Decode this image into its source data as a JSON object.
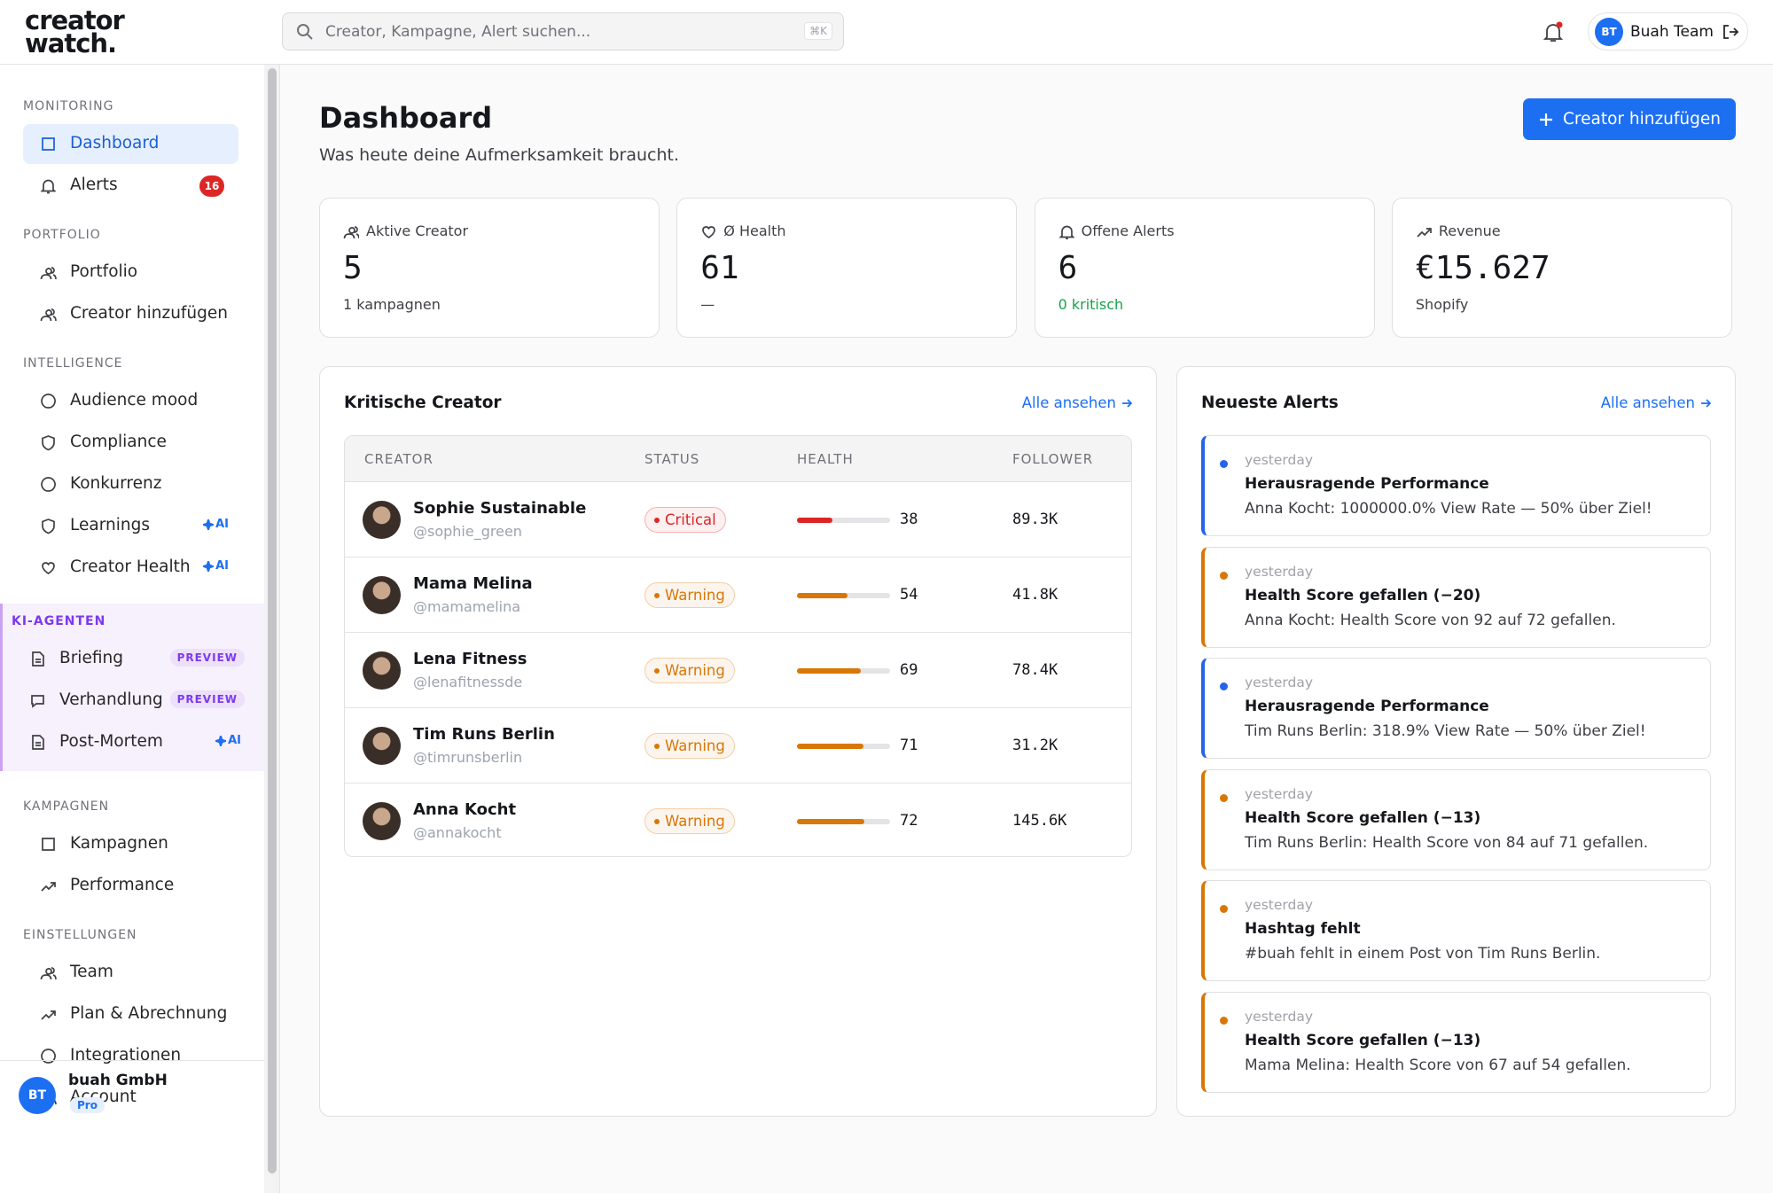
{
  "logo": {
    "line1": "creator",
    "line2": "watch."
  },
  "search": {
    "placeholder": "Creator, Kampagne, Alert suchen...",
    "shortcut": "⌘K"
  },
  "user": {
    "initials": "BT",
    "name": "Buah Team"
  },
  "sidebar": {
    "sections": [
      {
        "title": "MONITORING",
        "items": [
          {
            "label": "Dashboard",
            "active": true
          },
          {
            "label": "Alerts",
            "badge": 16
          }
        ]
      },
      {
        "title": "PORTFOLIO",
        "items": [
          {
            "label": "Portfolio"
          },
          {
            "label": "Creator hinzufügen"
          }
        ]
      },
      {
        "title": "INTELLIGENCE",
        "items": [
          {
            "label": "Audience mood"
          },
          {
            "label": "Compliance"
          },
          {
            "label": "Konkurrenz"
          },
          {
            "label": "Learnings",
            "tag": "AI"
          },
          {
            "label": "Creator Health",
            "tag": "AI"
          }
        ]
      },
      {
        "title": "KI-AGENTEN",
        "highlight": true,
        "items": [
          {
            "label": "Briefing",
            "pill": "PREVIEW"
          },
          {
            "label": "Verhandlung",
            "pill": "PREVIEW"
          },
          {
            "label": "Post-Mortem",
            "tag": "AI"
          }
        ]
      },
      {
        "title": "KAMPAGNEN",
        "items": [
          {
            "label": "Kampagnen"
          },
          {
            "label": "Performance"
          }
        ]
      },
      {
        "title": "EINSTELLUNGEN",
        "items": [
          {
            "label": "Team"
          },
          {
            "label": "Plan & Abrechnung"
          },
          {
            "label": "Integrationen"
          },
          {
            "label": "Account"
          }
        ]
      }
    ],
    "footer": {
      "initials": "BT",
      "name": "buah GmbH",
      "plan": "Pro"
    }
  },
  "page": {
    "title": "Dashboard",
    "subtitle": "Was heute deine Aufmerksamkeit braucht.",
    "cta": "Creator hinzufügen"
  },
  "stats": [
    {
      "label": "Aktive Creator",
      "value": 5,
      "note": "1 kampagnen"
    },
    {
      "label": "Ø Health",
      "value": 61,
      "note": "—"
    },
    {
      "label": "Offene Alerts",
      "value": 6,
      "note": "0 kritisch",
      "note_color": "#16a34a"
    },
    {
      "label": "Revenue",
      "value": "€15.627",
      "note": "Shopify"
    }
  ],
  "critical": {
    "title": "Kritische Creator",
    "link": "Alle ansehen",
    "columns": [
      "CREATOR",
      "STATUS",
      "HEALTH",
      "FOLLOWER"
    ],
    "rows": [
      {
        "name": "Sophie Sustainable",
        "handle": "@sophie_green",
        "status": "Critical",
        "color": "#dc2626",
        "health": 38,
        "follower": "89.3K"
      },
      {
        "name": "Mama Melina",
        "handle": "@mamamelina",
        "status": "Warning",
        "color": "#d97706",
        "health": 54,
        "follower": "41.8K"
      },
      {
        "name": "Lena Fitness",
        "handle": "@lenafitnessde",
        "status": "Warning",
        "color": "#d97706",
        "health": 69,
        "follower": "78.4K"
      },
      {
        "name": "Tim Runs Berlin",
        "handle": "@timrunsberlin",
        "status": "Warning",
        "color": "#d97706",
        "health": 71,
        "follower": "31.2K"
      },
      {
        "name": "Anna Kocht",
        "handle": "@annakocht",
        "status": "Warning",
        "color": "#d97706",
        "health": 72,
        "follower": "145.6K"
      }
    ]
  },
  "alerts": {
    "title": "Neueste Alerts",
    "link": "Alle ansehen",
    "items": [
      {
        "time": "yesterday",
        "title": "Herausragende Performance",
        "text": "Anna Kocht: 1000000.0% View Rate — 50% über Ziel!",
        "color": "#2563eb"
      },
      {
        "time": "yesterday",
        "title": "Health Score gefallen (−20)",
        "text": "Anna Kocht: Health Score von 92 auf 72 gefallen.",
        "color": "#d97706"
      },
      {
        "time": "yesterday",
        "title": "Herausragende Performance",
        "text": "Tim Runs Berlin: 318.9% View Rate — 50% über Ziel!",
        "color": "#2563eb"
      },
      {
        "time": "yesterday",
        "title": "Health Score gefallen (−13)",
        "text": "Tim Runs Berlin: Health Score von 84 auf 71 gefallen.",
        "color": "#d97706"
      },
      {
        "time": "yesterday",
        "title": "Hashtag fehlt",
        "text": "#buah fehlt in einem Post von Tim Runs Berlin.",
        "color": "#d97706"
      },
      {
        "time": "yesterday",
        "title": "Health Score gefallen (−13)",
        "text": "Mama Melina: Health Score von 67 auf 54 gefallen.",
        "color": "#d97706"
      }
    ]
  }
}
